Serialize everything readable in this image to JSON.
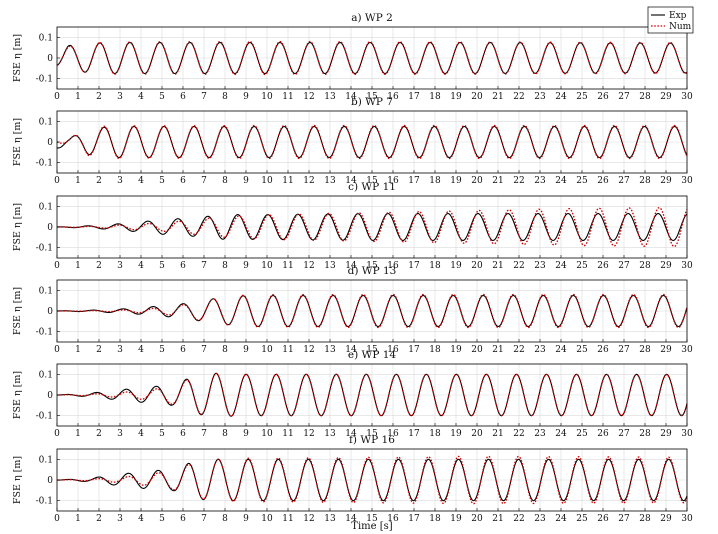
{
  "figure": {
    "xlabel": "Time [s]",
    "legend": {
      "position": "top-right",
      "entries": [
        {
          "label": "Exp",
          "style": "solid",
          "color": "#000000"
        },
        {
          "label": "Num",
          "style": "dotted",
          "color": "#cc0000"
        }
      ]
    }
  },
  "chart_data": [
    {
      "type": "line",
      "title": "a) WP 2",
      "ylabel": "FSE η [m]",
      "xlim": [
        0,
        30
      ],
      "ylim": [
        -0.15,
        0.15
      ],
      "xticks": [
        0,
        1,
        2,
        3,
        4,
        5,
        6,
        7,
        8,
        9,
        10,
        11,
        12,
        13,
        14,
        15,
        16,
        17,
        18,
        19,
        20,
        21,
        22,
        23,
        24,
        25,
        26,
        27,
        28,
        29,
        30
      ],
      "yticks": [
        -0.1,
        0,
        0.1
      ],
      "ytick_labels": [
        "-0.1",
        "0",
        "0.1"
      ],
      "grid": true,
      "period_s": 1.43,
      "series": [
        {
          "name": "Exp",
          "color": "#000000",
          "dash": "solid",
          "x": [
            0,
            0.5,
            1.5,
            2.5,
            4,
            10,
            20,
            30
          ],
          "amplitude": [
            0.04,
            0.06,
            0.07,
            0.075,
            0.075,
            0.075,
            0.075,
            0.072
          ],
          "phase_s": 0.25
        },
        {
          "name": "Num",
          "color": "#cc0000",
          "dash": "dotted",
          "x": [
            0,
            0.5,
            1.5,
            2.5,
            4,
            10,
            20,
            30
          ],
          "amplitude": [
            0.04,
            0.055,
            0.072,
            0.078,
            0.078,
            0.08,
            0.078,
            0.075
          ],
          "phase_s": 0.25
        }
      ]
    },
    {
      "type": "line",
      "title": "b) WP 7",
      "ylabel": "FSE η [m]",
      "xlim": [
        0,
        30
      ],
      "ylim": [
        -0.15,
        0.15
      ],
      "xticks": [
        0,
        1,
        2,
        3,
        4,
        5,
        6,
        7,
        8,
        9,
        10,
        11,
        12,
        13,
        14,
        15,
        16,
        17,
        18,
        19,
        20,
        21,
        22,
        23,
        24,
        25,
        26,
        27,
        28,
        29,
        30
      ],
      "yticks": [
        -0.1,
        0,
        0.1
      ],
      "ytick_labels": [
        "-0.1",
        "0",
        "0.1"
      ],
      "grid": true,
      "period_s": 1.43,
      "series": [
        {
          "name": "Exp",
          "color": "#000000",
          "dash": "solid",
          "x": [
            0,
            0.6,
            1.5,
            2.5,
            4,
            10,
            20,
            30
          ],
          "amplitude": [
            0.03,
            0.02,
            0.06,
            0.075,
            0.075,
            0.075,
            0.075,
            0.075
          ],
          "phase_s": 0.45
        },
        {
          "name": "Num",
          "color": "#cc0000",
          "dash": "dotted",
          "x": [
            0,
            0.6,
            1.5,
            2.5,
            4,
            10,
            20,
            30
          ],
          "amplitude": [
            0.0,
            0.02,
            0.065,
            0.08,
            0.078,
            0.08,
            0.08,
            0.08
          ],
          "phase_s": 0.45
        }
      ]
    },
    {
      "type": "line",
      "title": "c) WP 11",
      "ylabel": "FSE η [m]",
      "xlim": [
        0,
        30
      ],
      "ylim": [
        -0.15,
        0.15
      ],
      "xticks": [
        0,
        1,
        2,
        3,
        4,
        5,
        6,
        7,
        8,
        9,
        10,
        11,
        12,
        13,
        14,
        15,
        16,
        17,
        18,
        19,
        20,
        21,
        22,
        23,
        24,
        25,
        26,
        27,
        28,
        29,
        30
      ],
      "yticks": [
        -0.1,
        0,
        0.1
      ],
      "ytick_labels": [
        "-0.1",
        "0",
        "0.1"
      ],
      "grid": true,
      "period_s": 1.43,
      "series": [
        {
          "name": "Exp",
          "color": "#000000",
          "dash": "solid",
          "x": [
            0,
            2,
            3.5,
            5,
            6.5,
            8,
            10,
            15,
            20,
            25,
            30
          ],
          "amplitude": [
            0.0,
            0.008,
            0.02,
            0.035,
            0.045,
            0.06,
            0.06,
            0.065,
            0.065,
            0.065,
            0.065
          ],
          "phase_s": 1.1
        },
        {
          "name": "Num",
          "color": "#cc0000",
          "dash": "dotted",
          "x": [
            0,
            2,
            3.5,
            5,
            6.5,
            8,
            10,
            15,
            20,
            25,
            30
          ],
          "amplitude": [
            0.0,
            0.004,
            0.012,
            0.02,
            0.035,
            0.05,
            0.06,
            0.07,
            0.08,
            0.09,
            0.095
          ],
          "phase_s": 1.15
        }
      ]
    },
    {
      "type": "line",
      "title": "d) WP 13",
      "ylabel": "FSE η [m]",
      "xlim": [
        0,
        30
      ],
      "ylim": [
        -0.15,
        0.15
      ],
      "xticks": [
        0,
        1,
        2,
        3,
        4,
        5,
        6,
        7,
        8,
        9,
        10,
        11,
        12,
        13,
        14,
        15,
        16,
        17,
        18,
        19,
        20,
        21,
        22,
        23,
        24,
        25,
        26,
        27,
        28,
        29,
        30
      ],
      "yticks": [
        -0.1,
        0,
        0.1
      ],
      "ytick_labels": [
        "-0.1",
        "0",
        "0.1"
      ],
      "grid": true,
      "period_s": 1.43,
      "series": [
        {
          "name": "Exp",
          "color": "#000000",
          "dash": "solid",
          "x": [
            0,
            2,
            3.5,
            5,
            6,
            7.5,
            9,
            15,
            20,
            30
          ],
          "amplitude": [
            0.0,
            0.005,
            0.012,
            0.025,
            0.035,
            0.06,
            0.075,
            0.075,
            0.075,
            0.075
          ],
          "phase_s": 1.35
        },
        {
          "name": "Num",
          "color": "#cc0000",
          "dash": "dotted",
          "x": [
            0,
            2,
            3.5,
            5,
            6,
            7.5,
            9,
            15,
            20,
            30
          ],
          "amplitude": [
            0.0,
            0.002,
            0.006,
            0.015,
            0.03,
            0.06,
            0.078,
            0.08,
            0.08,
            0.08
          ],
          "phase_s": 1.35
        }
      ]
    },
    {
      "type": "line",
      "title": "e) WP 14",
      "ylabel": "FSE η [m]",
      "xlim": [
        0,
        30
      ],
      "ylim": [
        -0.15,
        0.15
      ],
      "xticks": [
        0,
        1,
        2,
        3,
        4,
        5,
        6,
        7,
        8,
        9,
        10,
        11,
        12,
        13,
        14,
        15,
        16,
        17,
        18,
        19,
        20,
        21,
        22,
        23,
        24,
        25,
        26,
        27,
        28,
        29,
        30
      ],
      "yticks": [
        -0.1,
        0,
        0.1
      ],
      "ytick_labels": [
        "-0.1",
        "0",
        "0.1"
      ],
      "grid": true,
      "period_s": 1.43,
      "series": [
        {
          "name": "Exp",
          "color": "#000000",
          "dash": "solid",
          "x": [
            0,
            1.5,
            3,
            4.5,
            5.5,
            6.5,
            7.5,
            9,
            15,
            20,
            30
          ],
          "amplitude": [
            0.0,
            0.008,
            0.025,
            0.04,
            0.05,
            0.09,
            0.105,
            0.1,
            0.1,
            0.1,
            0.1
          ],
          "phase_s": 1.5
        },
        {
          "name": "Num",
          "color": "#cc0000",
          "dash": "dotted",
          "x": [
            0,
            1.5,
            3,
            4.5,
            5.5,
            6.5,
            7.5,
            9,
            15,
            20,
            30
          ],
          "amplitude": [
            0.0,
            0.004,
            0.012,
            0.025,
            0.045,
            0.085,
            0.105,
            0.1,
            0.1,
            0.1,
            0.098
          ],
          "phase_s": 1.5
        }
      ]
    },
    {
      "type": "line",
      "title": "f) WP 16",
      "ylabel": "FSE η [m]",
      "xlim": [
        0,
        30
      ],
      "ylim": [
        -0.15,
        0.15
      ],
      "xticks": [
        0,
        1,
        2,
        3,
        4,
        5,
        6,
        7,
        8,
        9,
        10,
        11,
        12,
        13,
        14,
        15,
        16,
        17,
        18,
        19,
        20,
        21,
        22,
        23,
        24,
        25,
        26,
        27,
        28,
        29,
        30
      ],
      "yticks": [
        -0.1,
        0,
        0.1
      ],
      "ytick_labels": [
        "-0.1",
        "0",
        "0.1"
      ],
      "grid": true,
      "period_s": 1.43,
      "series": [
        {
          "name": "Exp",
          "color": "#000000",
          "dash": "solid",
          "x": [
            0,
            1.5,
            3,
            4.5,
            5.5,
            6.5,
            7.5,
            9,
            15,
            20,
            30
          ],
          "amplitude": [
            0.0,
            0.008,
            0.028,
            0.045,
            0.05,
            0.09,
            0.1,
            0.1,
            0.1,
            0.1,
            0.1
          ],
          "phase_s": 1.6
        },
        {
          "name": "Num",
          "color": "#cc0000",
          "dash": "dotted",
          "x": [
            0,
            1.5,
            3,
            4.5,
            5.5,
            6.5,
            7.5,
            9,
            15,
            20,
            30
          ],
          "amplitude": [
            0.0,
            0.004,
            0.012,
            0.03,
            0.045,
            0.085,
            0.1,
            0.105,
            0.11,
            0.115,
            0.11
          ],
          "phase_s": 1.6
        }
      ]
    }
  ]
}
